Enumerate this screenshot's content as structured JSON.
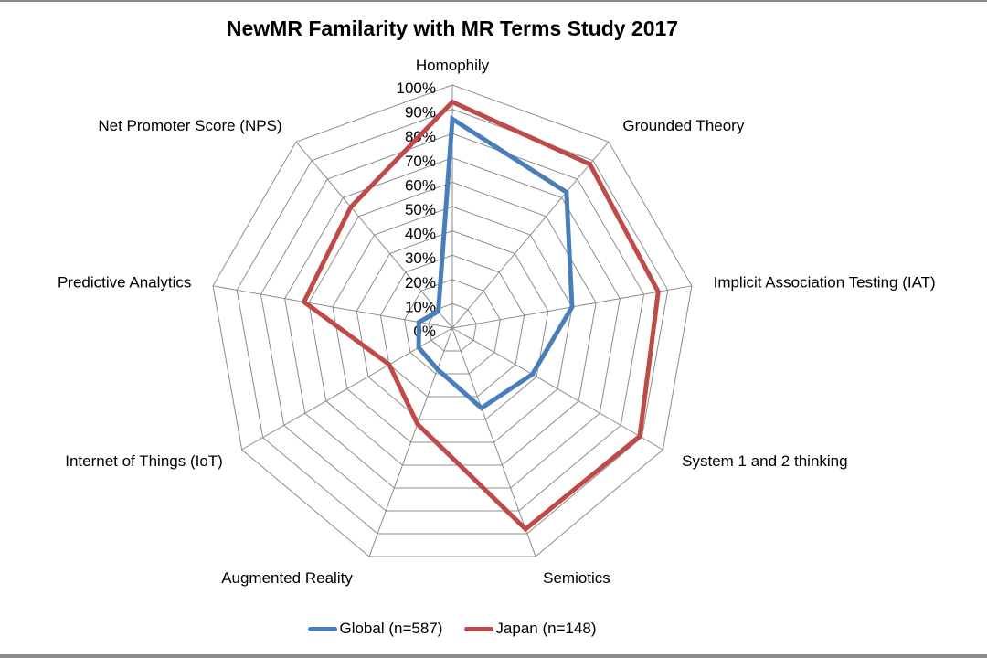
{
  "chart_data": {
    "type": "radar",
    "title": "NewMR Familarity with MR Terms Study 2017",
    "categories": [
      "Homophily",
      "Grounded Theory",
      "Implicit Association Testing (IAT)",
      "System 1 and 2 thinking",
      "Semiotics",
      "Augmented Reality",
      "Internet of Things (IoT)",
      "Predictive Analytics",
      "Net Promoter Score (NPS)"
    ],
    "series": [
      {
        "name": "Global (n=587)",
        "color": "#4a7ebb",
        "values": [
          86,
          73,
          50,
          38,
          35,
          18,
          16,
          14,
          9
        ]
      },
      {
        "name": "Japan (n=148)",
        "color": "#be4b48",
        "values": [
          93,
          88,
          86,
          89,
          88,
          42,
          30,
          62,
          65
        ]
      }
    ],
    "r_axis": {
      "range": [
        0,
        100
      ],
      "ticks": [
        "0%",
        "10%",
        "20%",
        "30%",
        "40%",
        "50%",
        "60%",
        "70%",
        "80%",
        "90%",
        "100%"
      ]
    },
    "grid": true,
    "legend_position": "bottom"
  }
}
